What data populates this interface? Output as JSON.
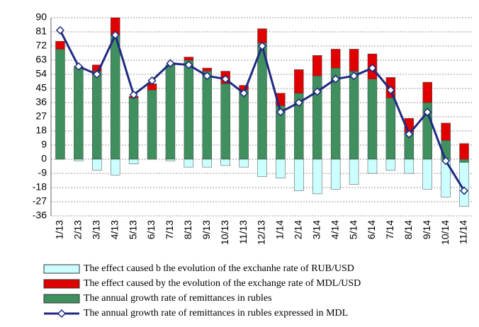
{
  "chart_data": {
    "type": "bar",
    "stacked": true,
    "categories": [
      "1/13",
      "2/13",
      "3/13",
      "4/13",
      "5/13",
      "6/13",
      "7/13",
      "8/13",
      "9/13",
      "10/13",
      "11/13",
      "12/13",
      "1/14",
      "2/14",
      "3/14",
      "4/14",
      "5/14",
      "6/14",
      "7/14",
      "8/14",
      "9/14",
      "10/14",
      "11/14"
    ],
    "series": [
      {
        "name": "The effect caused b the evolution of the exchanhe rate of RUB/USD",
        "color": "#ccffff",
        "kind": "bar",
        "values": [
          0,
          -1,
          -7,
          -10,
          -3,
          0,
          -1,
          -5,
          -5,
          -4,
          -5,
          -11,
          -12,
          -20,
          -22,
          -19,
          -16,
          -9,
          -7,
          -9,
          -19,
          -24,
          -28
        ]
      },
      {
        "name": "The effect caused by the evolution of the exchange rate of MDL/USD",
        "color": "#e00000",
        "kind": "bar",
        "values": [
          5,
          0,
          4,
          11,
          1,
          4,
          0,
          2,
          2,
          8,
          3,
          9,
          8,
          15,
          13,
          12,
          14,
          16,
          13,
          9,
          13,
          11,
          10
        ]
      },
      {
        "name": "The annual growth rate of remittances in rubles",
        "color": "#3f8f5f",
        "kind": "bar",
        "values": [
          70,
          59,
          56,
          79,
          39,
          44,
          60,
          63,
          56,
          48,
          44,
          74,
          34,
          42,
          53,
          58,
          56,
          51,
          39,
          17,
          36,
          12,
          -2
        ]
      },
      {
        "name": "The annual growth rate of remittances in rubles expressed in MDL",
        "color": "#1f2a80",
        "kind": "line",
        "values": [
          82,
          59,
          54,
          79,
          41,
          50,
          61,
          60,
          53,
          51,
          42,
          72,
          30,
          36,
          43,
          51,
          53,
          58,
          44,
          16,
          30,
          -1,
          -20
        ]
      }
    ],
    "ylim": [
      -36,
      90
    ],
    "yticks": [
      -36,
      -27,
      -18,
      -9,
      0,
      9,
      18,
      27,
      36,
      45,
      54,
      63,
      72,
      81,
      90
    ],
    "grid": true
  }
}
